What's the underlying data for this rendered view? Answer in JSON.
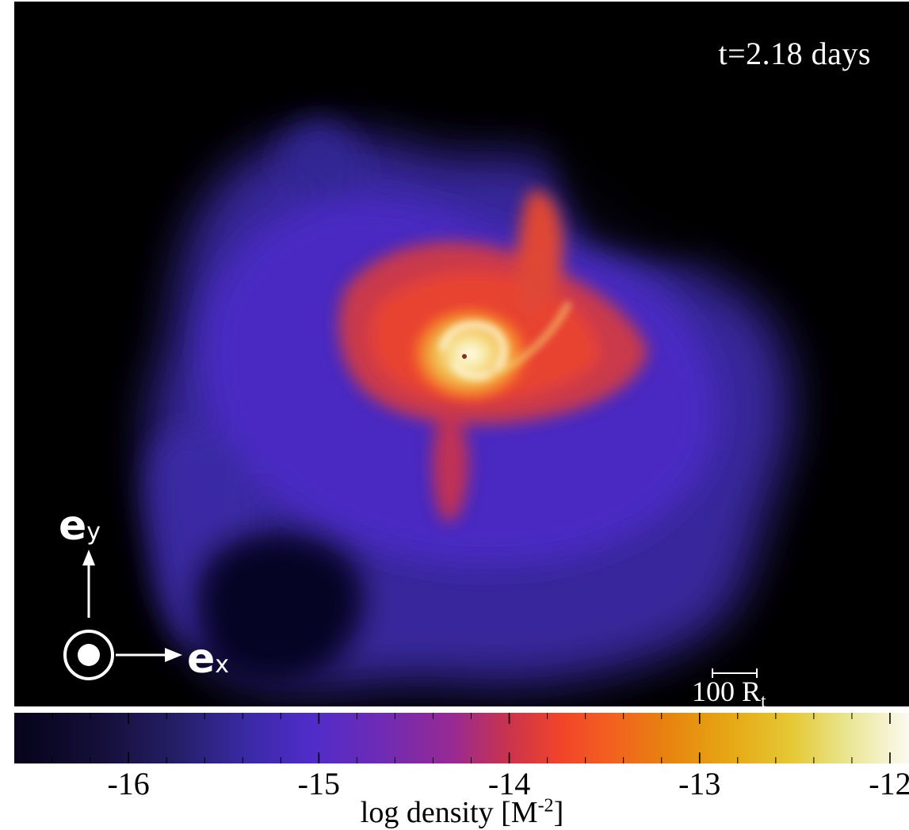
{
  "panel": {
    "time_label": "t=2.18 days",
    "scale_bar_value": "100 R",
    "scale_bar_subscript": "t"
  },
  "axes": {
    "x_label": "e",
    "x_sub": "x",
    "y_label": "e",
    "y_sub": "y"
  },
  "colorbar": {
    "title": "log density [M",
    "title_sup": "-2",
    "title_close": "]",
    "range": [
      -16.6,
      -11.9
    ],
    "tick_labels": [
      "-16",
      "-15",
      "-14",
      "-13",
      "-12"
    ],
    "tick_values": [
      -16,
      -15,
      -14,
      -13,
      -12
    ],
    "colormap": "gnuplot2-like",
    "colors": {
      "low": "#06031a",
      "mid": "#f1442a",
      "high": "#fbfaf0"
    }
  }
}
